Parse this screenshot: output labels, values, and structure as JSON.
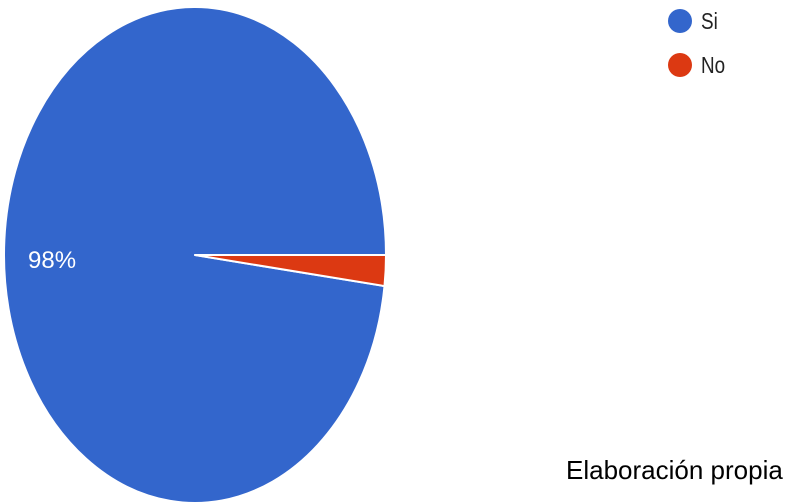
{
  "chart_data": {
    "type": "pie",
    "title": "",
    "slices": [
      {
        "label": "Si",
        "value": 98,
        "color": "#3366cc",
        "data_label": "98%"
      },
      {
        "label": "No",
        "value": 2,
        "color": "#dc3912"
      }
    ],
    "legend_position": "top-right"
  },
  "legend": {
    "items": [
      {
        "label": "Si",
        "color": "#3366cc"
      },
      {
        "label": "No",
        "color": "#dc3912"
      }
    ]
  },
  "source_note": "Elaboración propia"
}
